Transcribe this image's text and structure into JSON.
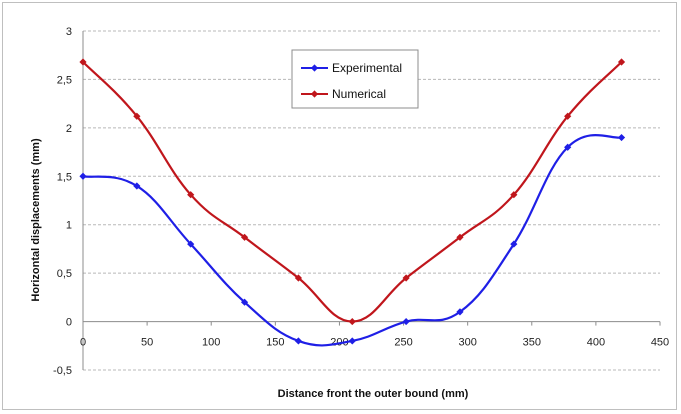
{
  "chart_data": {
    "type": "line",
    "xlabel": "Distance front the outer bound (mm)",
    "ylabel": "Horizontal displacements (mm)",
    "xlim": [
      0,
      450
    ],
    "ylim": [
      -0.5,
      3
    ],
    "xticks": [
      0,
      50,
      100,
      150,
      200,
      250,
      300,
      350,
      400,
      450
    ],
    "xtick_labels": [
      "0",
      "50",
      "100",
      "150",
      "200",
      "250",
      "300",
      "350",
      "400",
      "450"
    ],
    "yticks": [
      -0.5,
      0,
      0.5,
      1,
      1.5,
      2,
      2.5,
      3
    ],
    "ytick_labels": [
      "-0,5",
      "0",
      "0,5",
      "1",
      "1,5",
      "2",
      "2,5",
      "3"
    ],
    "grid": "horizontal dashed",
    "legend_position": "top-center",
    "series": [
      {
        "name": "Experimental",
        "color": "#1f1fe6",
        "x": [
          0,
          42,
          84,
          126,
          168,
          210,
          252,
          294,
          336,
          378,
          420
        ],
        "y": [
          1.5,
          1.4,
          0.8,
          0.2,
          -0.2,
          -0.2,
          0.0,
          0.1,
          0.8,
          1.8,
          1.9
        ]
      },
      {
        "name": "Numerical",
        "color": "#c0161c",
        "x": [
          0,
          42,
          84,
          126,
          168,
          210,
          252,
          294,
          336,
          378,
          420
        ],
        "y": [
          2.68,
          2.12,
          1.31,
          0.87,
          0.45,
          0.0,
          0.45,
          0.87,
          1.31,
          2.12,
          2.68
        ]
      }
    ]
  }
}
